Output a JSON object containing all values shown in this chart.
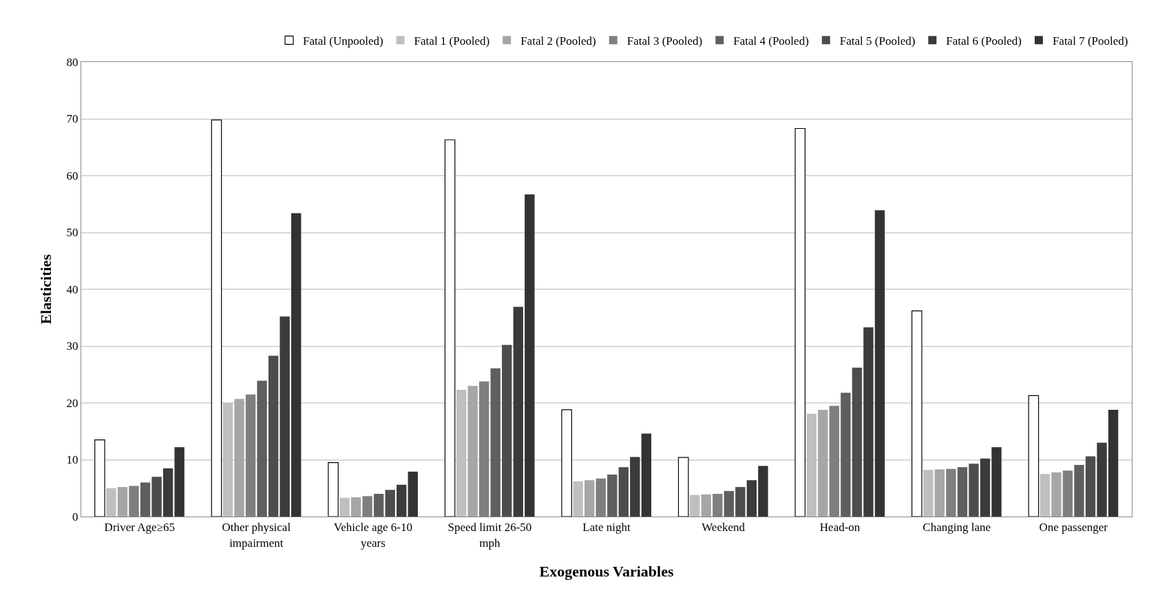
{
  "chart_data": {
    "type": "bar",
    "xlabel": "Exogenous Variables",
    "ylabel": "Elasticities",
    "categories": [
      "Driver Age≥65",
      "Other physical impairment",
      "Vehicle age 6-10 years",
      "Speed limit 26-50 mph",
      "Late night",
      "Weekend",
      "Head-on",
      "Changing lane",
      "One passenger"
    ],
    "series": [
      {
        "name": "Fatal (Unpooled)",
        "color": "#ffffff",
        "values": [
          13.5,
          69.8,
          9.5,
          66.3,
          18.8,
          10.4,
          68.3,
          36.2,
          21.3
        ]
      },
      {
        "name": "Fatal 1 (Pooled)",
        "color": "#bfbfbf",
        "values": [
          5.0,
          20.0,
          3.3,
          22.3,
          6.2,
          3.8,
          18.1,
          8.2,
          7.5
        ]
      },
      {
        "name": "Fatal 2 (Pooled)",
        "color": "#a6a6a6",
        "values": [
          5.2,
          20.7,
          3.4,
          23.0,
          6.4,
          3.9,
          18.8,
          8.3,
          7.8
        ]
      },
      {
        "name": "Fatal 3 (Pooled)",
        "color": "#7f7f7f",
        "values": [
          5.4,
          21.5,
          3.6,
          23.8,
          6.7,
          4.0,
          19.5,
          8.4,
          8.1
        ]
      },
      {
        "name": "Fatal 4 (Pooled)",
        "color": "#5f5f5f",
        "values": [
          6.0,
          23.9,
          4.0,
          26.1,
          7.4,
          4.5,
          21.8,
          8.7,
          9.1
        ]
      },
      {
        "name": "Fatal 5 (Pooled)",
        "color": "#4d4d4d",
        "values": [
          7.0,
          28.3,
          4.7,
          30.2,
          8.7,
          5.2,
          26.2,
          9.3,
          10.6
        ]
      },
      {
        "name": "Fatal 6 (Pooled)",
        "color": "#3b3b3b",
        "values": [
          8.5,
          35.2,
          5.6,
          36.9,
          10.5,
          6.4,
          33.3,
          10.2,
          13.0
        ]
      },
      {
        "name": "Fatal 7 (Pooled)",
        "color": "#333333",
        "values": [
          12.2,
          53.4,
          7.9,
          56.7,
          14.6,
          8.9,
          53.9,
          12.2,
          18.8
        ]
      }
    ],
    "ylim": [
      0,
      80
    ],
    "yticks": [
      0,
      10,
      20,
      30,
      40,
      50,
      60,
      70,
      80
    ],
    "grid": "y",
    "legend": "top"
  }
}
